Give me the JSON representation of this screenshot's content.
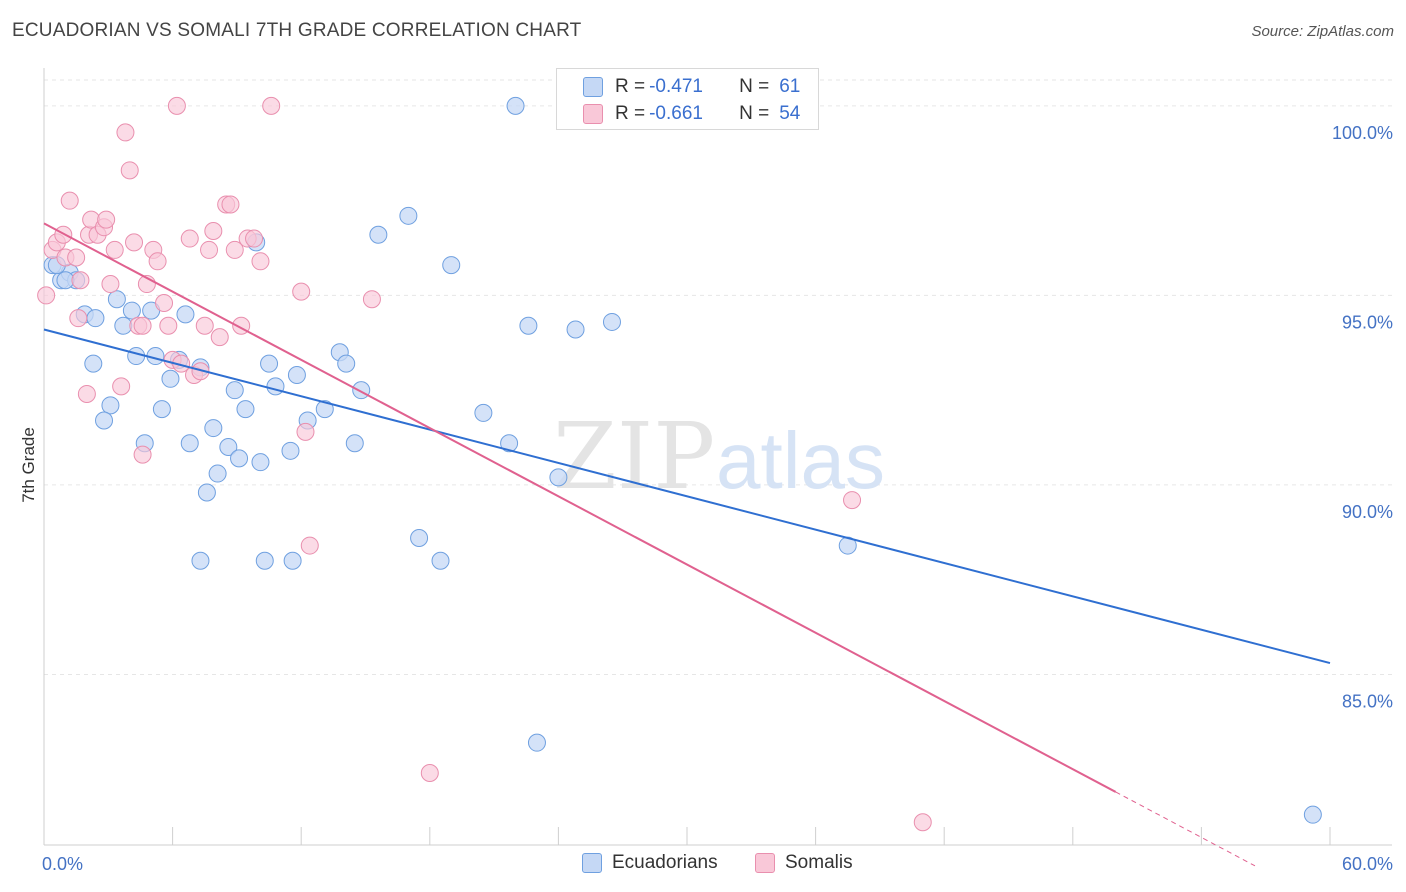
{
  "title": "ECUADORIAN VS SOMALI 7TH GRADE CORRELATION CHART",
  "source": "Source: ZipAtlas.com",
  "watermark": {
    "zip": "ZIP",
    "atlas": "atlas"
  },
  "colors": {
    "ecuadorian_fill": "#c5d8f5",
    "ecuadorian_stroke": "#6fa0e0",
    "ecuadorian_line": "#2f6fd1",
    "somali_fill": "#f9c8d8",
    "somali_stroke": "#e98fae",
    "somali_line": "#e0618f",
    "tick_text": "#4472c4",
    "grid": "#e6e6e6"
  },
  "legend": {
    "rows": [
      {
        "r_label": "R =",
        "r_value": "-0.471",
        "n_label": "N =",
        "n_value": "61"
      },
      {
        "r_label": "R =",
        "r_value": "-0.661",
        "n_label": "N =",
        "n_value": "54"
      }
    ]
  },
  "bottom_legend": [
    "Ecuadorians",
    "Somalis"
  ],
  "chart_data": {
    "type": "scatter",
    "title": "ECUADORIAN VS SOMALI 7TH GRADE CORRELATION CHART",
    "xlabel": "",
    "ylabel": "7th Grade",
    "xlim": [
      0,
      60
    ],
    "ylim": [
      80.5,
      101
    ],
    "x_tick_labels": [
      "0.0%",
      "60.0%"
    ],
    "y_ticks": [
      85,
      90,
      95,
      100
    ],
    "y_tick_labels": [
      "85.0%",
      "90.0%",
      "95.0%",
      "100.0%"
    ],
    "grid": true,
    "legend_position": "top-center",
    "series": [
      {
        "name": "Ecuadorians",
        "r": -0.471,
        "n": 61,
        "trend": {
          "x": [
            0,
            60
          ],
          "y": [
            94.1,
            85.3
          ]
        },
        "points": [
          [
            0.4,
            95.8
          ],
          [
            0.8,
            95.4
          ],
          [
            1.2,
            95.6
          ],
          [
            1.5,
            95.4
          ],
          [
            1.9,
            94.5
          ],
          [
            2.4,
            94.4
          ],
          [
            2.3,
            93.2
          ],
          [
            3.1,
            92.1
          ],
          [
            2.8,
            91.7
          ],
          [
            3.4,
            94.9
          ],
          [
            3.7,
            94.2
          ],
          [
            4.1,
            94.6
          ],
          [
            4.3,
            93.4
          ],
          [
            5.0,
            94.6
          ],
          [
            5.2,
            93.4
          ],
          [
            4.7,
            91.1
          ],
          [
            5.5,
            92.0
          ],
          [
            5.9,
            92.8
          ],
          [
            6.3,
            93.3
          ],
          [
            6.6,
            94.5
          ],
          [
            6.8,
            91.1
          ],
          [
            7.3,
            93.1
          ],
          [
            7.6,
            89.8
          ],
          [
            7.9,
            91.5
          ],
          [
            8.1,
            90.3
          ],
          [
            8.6,
            91.0
          ],
          [
            8.9,
            92.5
          ],
          [
            9.1,
            90.7
          ],
          [
            9.4,
            92.0
          ],
          [
            9.9,
            96.4
          ],
          [
            10.1,
            90.6
          ],
          [
            10.5,
            93.2
          ],
          [
            10.8,
            92.6
          ],
          [
            11.5,
            90.9
          ],
          [
            11.8,
            92.9
          ],
          [
            12.3,
            91.7
          ],
          [
            13.1,
            92.0
          ],
          [
            13.8,
            93.5
          ],
          [
            14.1,
            93.2
          ],
          [
            14.5,
            91.1
          ],
          [
            14.8,
            92.5
          ],
          [
            15.6,
            96.6
          ],
          [
            7.3,
            88.0
          ],
          [
            10.3,
            88.0
          ],
          [
            11.6,
            88.0
          ],
          [
            17.0,
            97.1
          ],
          [
            17.5,
            88.6
          ],
          [
            18.5,
            88.0
          ],
          [
            19.0,
            95.8
          ],
          [
            20.5,
            91.9
          ],
          [
            21.7,
            91.1
          ],
          [
            22.0,
            100.0
          ],
          [
            22.6,
            94.2
          ],
          [
            23.0,
            83.2
          ],
          [
            24.0,
            90.2
          ],
          [
            24.8,
            94.1
          ],
          [
            26.5,
            94.3
          ],
          [
            37.5,
            88.4
          ],
          [
            59.2,
            81.3
          ],
          [
            0.6,
            95.8
          ],
          [
            1.0,
            95.4
          ]
        ]
      },
      {
        "name": "Somalis",
        "r": -0.661,
        "n": 54,
        "trend": {
          "x": [
            0,
            50
          ],
          "y": [
            96.9,
            81.9
          ]
        },
        "points": [
          [
            0.1,
            95.0
          ],
          [
            0.4,
            96.2
          ],
          [
            0.6,
            96.4
          ],
          [
            0.9,
            96.6
          ],
          [
            1.0,
            96.0
          ],
          [
            1.2,
            97.5
          ],
          [
            1.5,
            96.0
          ],
          [
            1.7,
            95.4
          ],
          [
            1.6,
            94.4
          ],
          [
            2.1,
            96.6
          ],
          [
            2.2,
            97.0
          ],
          [
            2.5,
            96.6
          ],
          [
            2.8,
            96.8
          ],
          [
            2.9,
            97.0
          ],
          [
            3.1,
            95.3
          ],
          [
            3.3,
            96.2
          ],
          [
            3.6,
            92.6
          ],
          [
            3.8,
            99.3
          ],
          [
            4.0,
            98.3
          ],
          [
            4.2,
            96.4
          ],
          [
            4.4,
            94.2
          ],
          [
            4.6,
            94.2
          ],
          [
            4.8,
            95.3
          ],
          [
            5.1,
            96.2
          ],
          [
            5.3,
            95.9
          ],
          [
            5.6,
            94.8
          ],
          [
            5.8,
            94.2
          ],
          [
            6.2,
            100.0
          ],
          [
            2.0,
            92.4
          ],
          [
            4.6,
            90.8
          ],
          [
            6.0,
            93.3
          ],
          [
            6.4,
            93.2
          ],
          [
            6.8,
            96.5
          ],
          [
            7.0,
            92.9
          ],
          [
            7.3,
            93.0
          ],
          [
            7.5,
            94.2
          ],
          [
            7.7,
            96.2
          ],
          [
            7.9,
            96.7
          ],
          [
            8.2,
            93.9
          ],
          [
            8.5,
            97.4
          ],
          [
            8.7,
            97.4
          ],
          [
            8.9,
            96.2
          ],
          [
            9.2,
            94.2
          ],
          [
            9.5,
            96.5
          ],
          [
            9.8,
            96.5
          ],
          [
            10.1,
            95.9
          ],
          [
            10.6,
            100.0
          ],
          [
            12.0,
            95.1
          ],
          [
            12.2,
            91.4
          ],
          [
            12.4,
            88.4
          ],
          [
            15.3,
            94.9
          ],
          [
            18.0,
            82.4
          ],
          [
            37.7,
            89.6
          ],
          [
            41.0,
            81.1
          ]
        ]
      }
    ]
  }
}
